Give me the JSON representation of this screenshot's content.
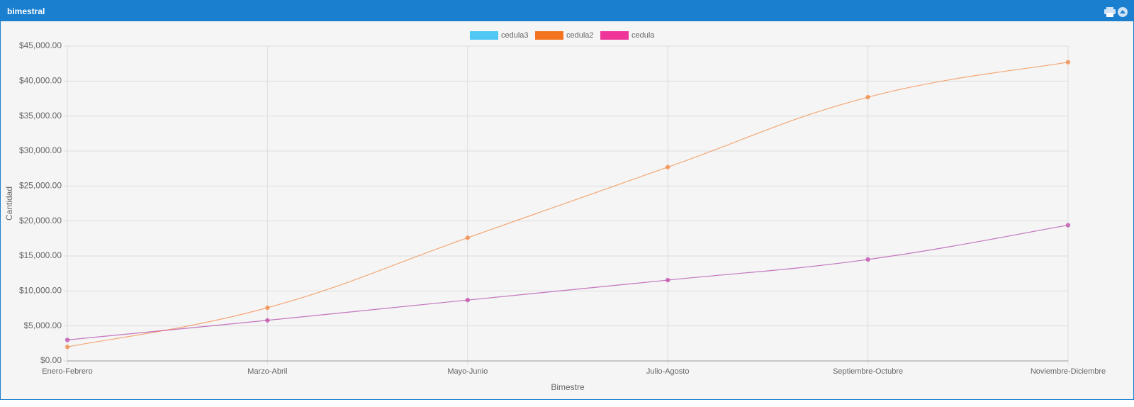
{
  "panel": {
    "title": "bimestral"
  },
  "chart_data": {
    "type": "line",
    "x_label": "Bimestre",
    "y_label": "Cantidad",
    "categories": [
      "Enero-Febrero",
      "Marzo-Abril",
      "Mayo-Junio",
      "Julio-Agosto",
      "Septiembre-Octubre",
      "Noviembre-Diciembre"
    ],
    "series": [
      {
        "name": "cedula3",
        "color": "#4fc8f5",
        "values": [
          3000,
          5800,
          8700,
          11550,
          14500,
          19400
        ]
      },
      {
        "name": "cedula2",
        "color": "#f47321",
        "values": [
          2000,
          7600,
          17600,
          27700,
          37700,
          42700
        ]
      },
      {
        "name": "cedula",
        "color": "#f0359a",
        "values": [
          3000,
          5800,
          8700,
          11550,
          14500,
          19400
        ]
      }
    ],
    "ylim": [
      0,
      45000
    ],
    "yticks": [
      {
        "value": 0,
        "label": "$0.00"
      },
      {
        "value": 5000,
        "label": "$5,000.00"
      },
      {
        "value": 10000,
        "label": "$10,000.00"
      },
      {
        "value": 15000,
        "label": "$15,000.00"
      },
      {
        "value": 20000,
        "label": "$20,000.00"
      },
      {
        "value": 25000,
        "label": "$25,000.00"
      },
      {
        "value": 30000,
        "label": "$30,000.00"
      },
      {
        "value": 35000,
        "label": "$35,000.00"
      },
      {
        "value": 40000,
        "label": "$40,000.00"
      },
      {
        "value": 45000,
        "label": "$45,000.00"
      }
    ],
    "grid": true,
    "legend": "top"
  }
}
